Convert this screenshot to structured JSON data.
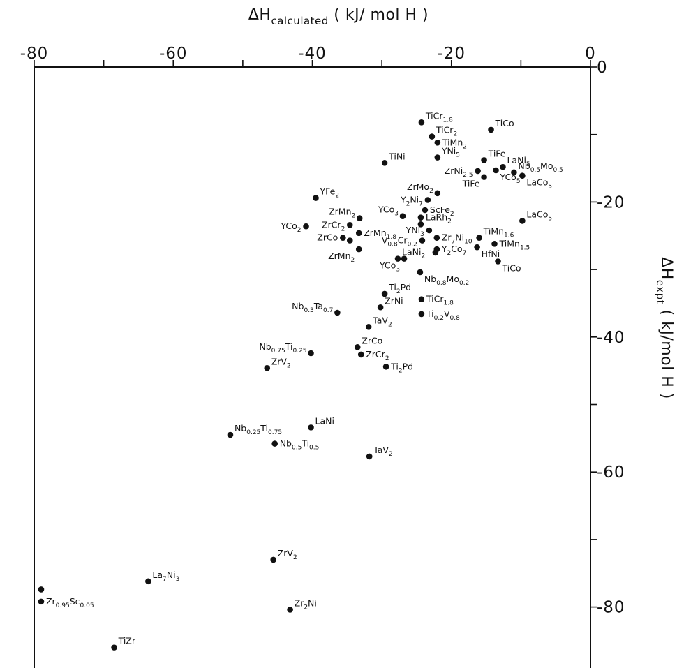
{
  "chart_data": {
    "type": "scatter",
    "title": "",
    "xlabel": {
      "prefix": "ΔH",
      "sub": "calculated",
      "unit": " ( kJ/ mol H )"
    },
    "ylabel": {
      "prefix": "ΔH",
      "sub": "expt",
      "unit": " ( kJ/mol H )"
    },
    "xlim": [
      -80,
      0
    ],
    "ylim": [
      -90,
      0
    ],
    "x_ticks": [
      -80,
      -70,
      -60,
      -50,
      -40,
      -30,
      -20,
      -10,
      0
    ],
    "x_tick_labels": [
      {
        "v": -80,
        "text": "-80"
      },
      {
        "v": -60,
        "text": "-60"
      },
      {
        "v": -40,
        "text": "-40"
      },
      {
        "v": -20,
        "text": "-20"
      },
      {
        "v": 0,
        "text": "0"
      }
    ],
    "y_ticks": [
      0,
      -10,
      -20,
      -30,
      -40,
      -50,
      -60,
      -70,
      -80
    ],
    "y_tick_labels": [
      {
        "v": 0,
        "text": "0"
      },
      {
        "v": -20,
        "text": "-20"
      },
      {
        "v": -40,
        "text": "-40"
      },
      {
        "v": -60,
        "text": "-60"
      },
      {
        "v": -80,
        "text": "-80"
      }
    ],
    "grid": false,
    "points": [
      {
        "x": -24.3,
        "y": -8.2,
        "label": [
          [
            "TiCr",
            ""
          ],
          [
            "1.8",
            "s"
          ]
        ],
        "pos": "ur"
      },
      {
        "x": -14.3,
        "y": -9.3,
        "label": [
          [
            "TiCo",
            ""
          ]
        ],
        "pos": "ur"
      },
      {
        "x": -22.8,
        "y": -10.3,
        "label": [
          [
            "TiCr",
            ""
          ],
          [
            "2",
            "s"
          ]
        ],
        "pos": "ur"
      },
      {
        "x": -22.0,
        "y": -11.2,
        "label": [
          [
            "TiMn",
            ""
          ],
          [
            "2",
            "s"
          ]
        ],
        "pos": "r"
      },
      {
        "x": -22.0,
        "y": -13.4,
        "label": [
          [
            "YNi",
            ""
          ],
          [
            "5",
            "s"
          ]
        ],
        "pos": "ur"
      },
      {
        "x": -29.6,
        "y": -14.2,
        "label": [
          [
            "TiNi",
            ""
          ]
        ],
        "pos": "ur"
      },
      {
        "x": -15.3,
        "y": -13.8,
        "label": [
          [
            "TiFe",
            ""
          ]
        ],
        "pos": "ur"
      },
      {
        "x": -12.6,
        "y": -14.8,
        "label": [
          [
            "LaNi",
            ""
          ],
          [
            "5",
            "s"
          ]
        ],
        "pos": "ur"
      },
      {
        "x": -16.2,
        "y": -15.4,
        "label": [
          [
            "ZrNi",
            ""
          ],
          [
            "2.5",
            "s"
          ]
        ],
        "pos": "l"
      },
      {
        "x": -13.6,
        "y": -15.3,
        "label": [
          [
            "YCo",
            ""
          ],
          [
            "5",
            "s"
          ]
        ],
        "pos": "dr"
      },
      {
        "x": -11.0,
        "y": -15.6,
        "label": [
          [
            "Nb",
            ""
          ],
          [
            "0.5",
            "s"
          ],
          [
            "Mo",
            ""
          ],
          [
            "0.5",
            "s"
          ]
        ],
        "pos": "ur"
      },
      {
        "x": -15.3,
        "y": -16.3,
        "label": [
          [
            "TiFe",
            ""
          ]
        ],
        "pos": "dl"
      },
      {
        "x": -9.8,
        "y": -16.1,
        "label": [
          [
            "LaCo",
            ""
          ],
          [
            "5",
            "s"
          ]
        ],
        "pos": "dr"
      },
      {
        "x": -22.0,
        "y": -18.7,
        "label": [
          [
            "ZrMo",
            ""
          ],
          [
            "2",
            "s"
          ]
        ],
        "pos": "ul"
      },
      {
        "x": -23.4,
        "y": -19.7,
        "label": [
          [
            "Y",
            ""
          ],
          [
            "2",
            "s"
          ],
          [
            "Ni",
            ""
          ],
          [
            "7",
            "s"
          ]
        ],
        "pos": "l"
      },
      {
        "x": -39.5,
        "y": -19.4,
        "label": [
          [
            "YFe",
            ""
          ],
          [
            "2",
            "s"
          ]
        ],
        "pos": "ur"
      },
      {
        "x": -27.0,
        "y": -22.1,
        "label": [
          [
            "YCo",
            ""
          ],
          [
            "3",
            "s"
          ]
        ],
        "pos": "ul"
      },
      {
        "x": -23.8,
        "y": -21.2,
        "label": [
          [
            "ScFe",
            ""
          ],
          [
            "2",
            "s"
          ]
        ],
        "pos": "r"
      },
      {
        "x": -33.2,
        "y": -22.4,
        "label": [
          [
            "ZrMn",
            ""
          ],
          [
            "2",
            "s"
          ]
        ],
        "pos": "ul"
      },
      {
        "x": -24.4,
        "y": -22.3,
        "label": [
          [
            "LaRh",
            ""
          ],
          [
            "2",
            "s"
          ]
        ],
        "pos": "r"
      },
      {
        "x": -40.9,
        "y": -23.6,
        "label": [
          [
            "YCo",
            ""
          ],
          [
            "2",
            "s"
          ]
        ],
        "pos": "l"
      },
      {
        "x": -34.6,
        "y": -23.4,
        "label": [
          [
            "ZrCr",
            ""
          ],
          [
            "2",
            "s"
          ]
        ],
        "pos": "l"
      },
      {
        "x": -23.2,
        "y": -24.2,
        "label": [
          [
            "YNi",
            ""
          ],
          [
            "3",
            "s"
          ]
        ],
        "pos": "l"
      },
      {
        "x": -24.4,
        "y": -23.3,
        "label": [
          [
            "",
            ""
          ]
        ],
        "pos": "r"
      },
      {
        "x": -9.8,
        "y": -22.8,
        "label": [
          [
            "LaCo",
            ""
          ],
          [
            "5",
            "s"
          ]
        ],
        "pos": "ur"
      },
      {
        "x": -33.3,
        "y": -24.6,
        "label": [
          [
            "ZrMn",
            ""
          ],
          [
            "1.8",
            "s"
          ]
        ],
        "pos": "r"
      },
      {
        "x": -22.1,
        "y": -25.3,
        "label": [
          [
            "Zr",
            ""
          ],
          [
            "7",
            "s"
          ],
          [
            "Ni",
            ""
          ],
          [
            "10",
            "s"
          ]
        ],
        "pos": "r"
      },
      {
        "x": -35.6,
        "y": -25.3,
        "label": [
          [
            "ZrCo",
            ""
          ]
        ],
        "pos": "l"
      },
      {
        "x": -34.6,
        "y": -25.7,
        "label": [
          [
            "",
            ""
          ]
        ],
        "pos": "l"
      },
      {
        "x": -24.2,
        "y": -25.7,
        "label": [
          [
            "V",
            ""
          ],
          [
            "0.8",
            "s"
          ],
          [
            "Cr",
            ""
          ],
          [
            "0.2",
            "s"
          ]
        ],
        "pos": "l"
      },
      {
        "x": -16.0,
        "y": -25.3,
        "label": [
          [
            "TiMn",
            ""
          ],
          [
            "1.6",
            "s"
          ]
        ],
        "pos": "ur"
      },
      {
        "x": -13.8,
        "y": -26.2,
        "label": [
          [
            "TiMn",
            ""
          ],
          [
            "1.5",
            "s"
          ]
        ],
        "pos": "r"
      },
      {
        "x": -22.1,
        "y": -27.0,
        "label": [
          [
            "Y",
            ""
          ],
          [
            "2",
            "s"
          ],
          [
            "Co",
            ""
          ],
          [
            "7",
            "s"
          ]
        ],
        "pos": "r"
      },
      {
        "x": -16.3,
        "y": -26.7,
        "label": [
          [
            "HfNi",
            ""
          ]
        ],
        "pos": "dr"
      },
      {
        "x": -33.3,
        "y": -27.0,
        "label": [
          [
            "ZrMn",
            ""
          ],
          [
            "2",
            "s"
          ]
        ],
        "pos": "dl"
      },
      {
        "x": -22.3,
        "y": -27.5,
        "label": [
          [
            "",
            ""
          ]
        ],
        "pos": "r"
      },
      {
        "x": -27.7,
        "y": -28.4,
        "label": [
          [
            "LaNi",
            ""
          ],
          [
            "2",
            "s"
          ]
        ],
        "pos": "ur"
      },
      {
        "x": -26.8,
        "y": -28.4,
        "label": [
          [
            "YCo",
            ""
          ],
          [
            "3",
            "s"
          ]
        ],
        "pos": "dl"
      },
      {
        "x": -13.3,
        "y": -28.8,
        "label": [
          [
            "TiCo",
            ""
          ]
        ],
        "pos": "dr"
      },
      {
        "x": -24.5,
        "y": -30.4,
        "label": [
          [
            "Nb",
            ""
          ],
          [
            "0.8",
            "s"
          ],
          [
            "Mo",
            ""
          ],
          [
            "0.2",
            "s"
          ]
        ],
        "pos": "dr"
      },
      {
        "x": -29.6,
        "y": -33.6,
        "label": [
          [
            "Ti",
            ""
          ],
          [
            "2",
            "s"
          ],
          [
            "Pd",
            ""
          ]
        ],
        "pos": "ur"
      },
      {
        "x": -24.3,
        "y": -34.4,
        "label": [
          [
            "TiCr",
            ""
          ],
          [
            "1.8",
            "s"
          ]
        ],
        "pos": "r"
      },
      {
        "x": -30.2,
        "y": -35.6,
        "label": [
          [
            "ZrNi",
            ""
          ]
        ],
        "pos": "ur"
      },
      {
        "x": -36.4,
        "y": -36.4,
        "label": [
          [
            "Nb",
            ""
          ],
          [
            "0.3",
            "s"
          ],
          [
            "Ta",
            ""
          ],
          [
            "0.7",
            "s"
          ]
        ],
        "pos": "ul"
      },
      {
        "x": -24.3,
        "y": -36.6,
        "label": [
          [
            "Ti",
            ""
          ],
          [
            "0.2",
            "s"
          ],
          [
            "V",
            ""
          ],
          [
            "0.8",
            "s"
          ]
        ],
        "pos": "r"
      },
      {
        "x": -31.9,
        "y": -38.5,
        "label": [
          [
            "TaV",
            ""
          ],
          [
            "2",
            "s"
          ]
        ],
        "pos": "ur"
      },
      {
        "x": -33.5,
        "y": -41.5,
        "label": [
          [
            "ZrCo",
            ""
          ]
        ],
        "pos": "ur"
      },
      {
        "x": -40.2,
        "y": -42.4,
        "label": [
          [
            "Nb",
            ""
          ],
          [
            "0.75",
            "s"
          ],
          [
            "Ti",
            ""
          ],
          [
            "0.25",
            "s"
          ]
        ],
        "pos": "ul"
      },
      {
        "x": -33.0,
        "y": -42.6,
        "label": [
          [
            "ZrCr",
            ""
          ],
          [
            "2",
            "s"
          ]
        ],
        "pos": "r"
      },
      {
        "x": -29.4,
        "y": -44.4,
        "label": [
          [
            "Ti",
            ""
          ],
          [
            "2",
            "s"
          ],
          [
            "Pd",
            ""
          ]
        ],
        "pos": "r"
      },
      {
        "x": -46.5,
        "y": -44.6,
        "label": [
          [
            "ZrV",
            ""
          ],
          [
            "2",
            "s"
          ]
        ],
        "pos": "ur"
      },
      {
        "x": -40.2,
        "y": -53.4,
        "label": [
          [
            "LaNi",
            ""
          ]
        ],
        "pos": "ur"
      },
      {
        "x": -51.8,
        "y": -54.5,
        "label": [
          [
            "Nb",
            ""
          ],
          [
            "0.25",
            "s"
          ],
          [
            "Ti",
            ""
          ],
          [
            "0.75",
            "s"
          ]
        ],
        "pos": "ur"
      },
      {
        "x": -45.4,
        "y": -55.8,
        "label": [
          [
            "Nb",
            ""
          ],
          [
            "0.5",
            "s"
          ],
          [
            "Ti",
            ""
          ],
          [
            "0.5",
            "s"
          ]
        ],
        "pos": "r"
      },
      {
        "x": -31.8,
        "y": -57.7,
        "label": [
          [
            "TaV",
            ""
          ],
          [
            "2",
            "s"
          ]
        ],
        "pos": "ur"
      },
      {
        "x": -45.6,
        "y": -73.0,
        "label": [
          [
            "ZrV",
            ""
          ],
          [
            "2",
            "s"
          ]
        ],
        "pos": "ur"
      },
      {
        "x": -63.6,
        "y": -76.2,
        "label": [
          [
            "La",
            ""
          ],
          [
            "7",
            "s"
          ],
          [
            "Ni",
            ""
          ],
          [
            "3",
            "s"
          ]
        ],
        "pos": "ur"
      },
      {
        "x": -79.0,
        "y": -77.4,
        "label": [
          [
            "",
            ""
          ]
        ],
        "pos": "r"
      },
      {
        "x": -79.0,
        "y": -79.2,
        "label": [
          [
            "Zr",
            ""
          ],
          [
            "0.95",
            "s"
          ],
          [
            "Sc",
            ""
          ],
          [
            "0.05",
            "s"
          ]
        ],
        "pos": "r"
      },
      {
        "x": -43.2,
        "y": -80.4,
        "label": [
          [
            "Zr",
            ""
          ],
          [
            "2",
            "s"
          ],
          [
            "Ni",
            ""
          ]
        ],
        "pos": "ur"
      },
      {
        "x": -68.5,
        "y": -86.0,
        "label": [
          [
            "TiZr",
            ""
          ]
        ],
        "pos": "ur"
      }
    ]
  }
}
